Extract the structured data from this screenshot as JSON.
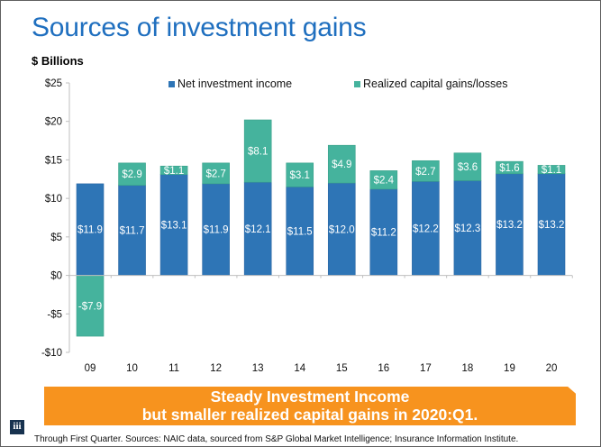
{
  "header": {
    "title": "Sources of investment gains",
    "unit_label": "$ Billions"
  },
  "chart_data": {
    "type": "bar",
    "stacked": true,
    "title": "Sources of investment gains",
    "ylabel": "$ Billions",
    "xlabel": "",
    "categories": [
      "09",
      "10",
      "11",
      "12",
      "13",
      "14",
      "15",
      "16",
      "17",
      "18",
      "19",
      "20"
    ],
    "series": [
      {
        "name": "Net investment income",
        "color": "#2e75b6",
        "values": [
          11.9,
          11.7,
          13.1,
          11.9,
          12.1,
          11.5,
          12.0,
          11.2,
          12.2,
          12.3,
          13.2,
          13.2
        ],
        "labels": [
          "$11.9",
          "$11.7",
          "$13.1",
          "$11.9",
          "$12.1",
          "$11.5",
          "$12.0",
          "$11.2",
          "$12.2",
          "$12.3",
          "$13.2",
          "$13.2"
        ]
      },
      {
        "name": "Realized capital gains/losses",
        "color": "#45b39d",
        "values": [
          -7.9,
          2.9,
          1.1,
          2.7,
          8.1,
          3.1,
          4.9,
          2.4,
          2.7,
          3.6,
          1.6,
          1.1
        ],
        "labels": [
          "-$7.9",
          "$2.9",
          "$1.1",
          "$2.7",
          "$8.1",
          "$3.1",
          "$4.9",
          "$2.4",
          "$2.7",
          "$3.6",
          "$1.6",
          "$1.1"
        ]
      }
    ],
    "ylim": [
      -10,
      25
    ],
    "yticks": [
      25,
      20,
      15,
      10,
      5,
      0,
      -5,
      -10
    ],
    "ytick_labels": [
      "$25",
      "$20",
      "$15",
      "$10",
      "$5",
      "$0",
      "-$5",
      "-$10"
    ],
    "grid": false,
    "legend_position": "top"
  },
  "callout": {
    "line1": "Steady Investment Income",
    "line2": "but smaller realized capital gains in 2020:Q1."
  },
  "footer": {
    "logo_text": "iii",
    "source": "Through First Quarter. Sources: NAIC data, sourced from S&P Global Market Intelligence; Insurance Information Institute."
  }
}
